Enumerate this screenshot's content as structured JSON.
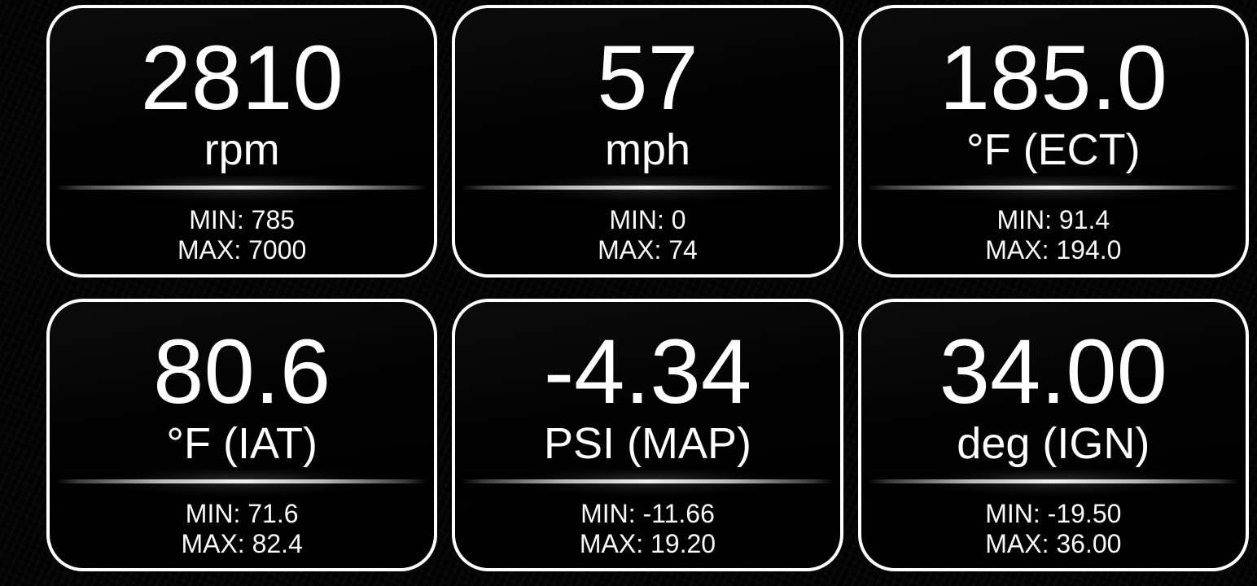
{
  "app": {
    "background_color": "#000000",
    "card_border_color": "#ffffff",
    "text_color": "#ffffff",
    "divider_color": "#efefef"
  },
  "gauges": [
    {
      "name": "engine-rpm",
      "value": "2810",
      "unit": "rpm",
      "min_label": "MIN: 785",
      "max_label": "MAX: 7000"
    },
    {
      "name": "vehicle-speed",
      "value": "57",
      "unit": "mph",
      "min_label": "MIN: 0",
      "max_label": "MAX: 74"
    },
    {
      "name": "coolant-temp",
      "value": "185.0",
      "unit": "°F (ECT)",
      "min_label": "MIN: 91.4",
      "max_label": "MAX: 194.0"
    },
    {
      "name": "intake-air-temp",
      "value": "80.6",
      "unit": "°F (IAT)",
      "min_label": "MIN: 71.6",
      "max_label": "MAX: 82.4"
    },
    {
      "name": "manifold-pressure",
      "value": "-4.34",
      "unit": "PSI (MAP)",
      "min_label": "MIN: -11.66",
      "max_label": "MAX: 19.20"
    },
    {
      "name": "ignition-timing",
      "value": "34.00",
      "unit": "deg (IGN)",
      "min_label": "MIN: -19.50",
      "max_label": "MAX: 36.00"
    }
  ]
}
